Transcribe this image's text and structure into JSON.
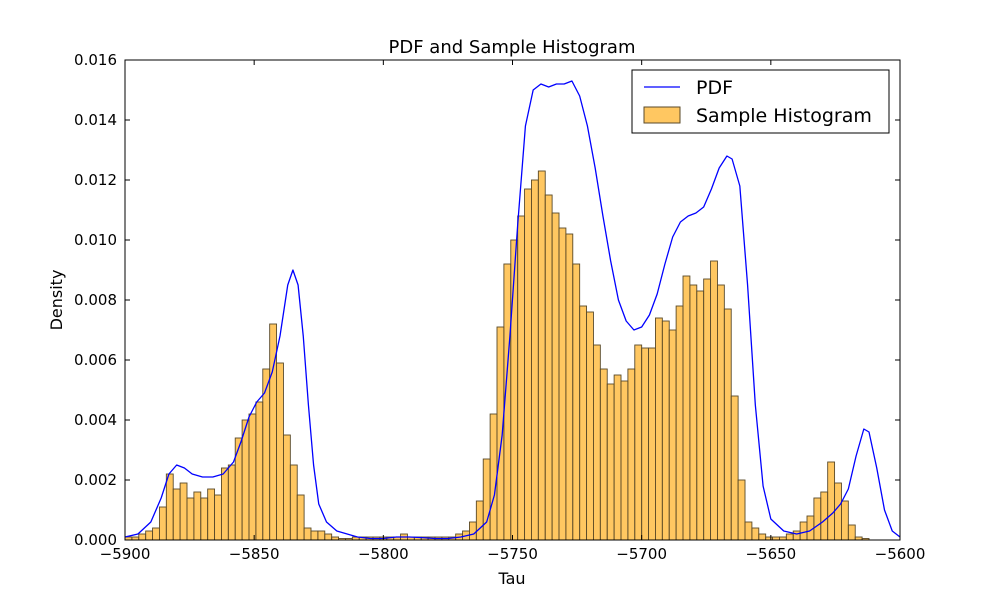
{
  "chart_data": {
    "type": "bar",
    "title": "PDF and Sample Histogram",
    "xlabel": "Tau",
    "ylabel": "Density",
    "xlim": [
      -5900,
      -5600
    ],
    "ylim": [
      0,
      0.016
    ],
    "xticks": [
      -5900,
      -5850,
      -5800,
      -5750,
      -5700,
      -5650,
      -5600
    ],
    "xtick_labels": [
      "−5900",
      "−5850",
      "−5800",
      "−5750",
      "−5700",
      "−5650",
      "−5600"
    ],
    "yticks": [
      0,
      0.002,
      0.004,
      0.006,
      0.008,
      0.01,
      0.012,
      0.014,
      0.016
    ],
    "ytick_labels": [
      "0.000",
      "0.002",
      "0.004",
      "0.006",
      "0.008",
      "0.010",
      "0.012",
      "0.014",
      "0.016"
    ],
    "grid": false,
    "legend": {
      "position": "top-right"
    },
    "colors": {
      "pdf": "#0000ff",
      "histogram": "#ffa500",
      "bar_edge": "#5a4a2a"
    },
    "series": [
      {
        "name": "PDF",
        "type": "line",
        "x": [
          -5900,
          -5895,
          -5890,
          -5886,
          -5883,
          -5880,
          -5877,
          -5874,
          -5870,
          -5866,
          -5862,
          -5858,
          -5855,
          -5852,
          -5849,
          -5846,
          -5843,
          -5840,
          -5837,
          -5835,
          -5833,
          -5831,
          -5829,
          -5827,
          -5825,
          -5822,
          -5818,
          -5814,
          -5810,
          -5805,
          -5800,
          -5795,
          -5790,
          -5785,
          -5780,
          -5775,
          -5770,
          -5765,
          -5760,
          -5757,
          -5754,
          -5751,
          -5748,
          -5745,
          -5742,
          -5739,
          -5736,
          -5733,
          -5730,
          -5727,
          -5724,
          -5721,
          -5718,
          -5715,
          -5712,
          -5709,
          -5706,
          -5703,
          -5700,
          -5697,
          -5694,
          -5691,
          -5688,
          -5685,
          -5682,
          -5679,
          -5676,
          -5673,
          -5670,
          -5667,
          -5665,
          -5662,
          -5659,
          -5656,
          -5653,
          -5650,
          -5645,
          -5640,
          -5635,
          -5630,
          -5626,
          -5623,
          -5620,
          -5617,
          -5614,
          -5612,
          -5609,
          -5606,
          -5603,
          -5600
        ],
        "y": [
          0.0001,
          0.0002,
          0.0006,
          0.0014,
          0.0022,
          0.0025,
          0.0024,
          0.0022,
          0.0021,
          0.0021,
          0.0022,
          0.0026,
          0.0033,
          0.0041,
          0.0046,
          0.0049,
          0.0056,
          0.0068,
          0.0085,
          0.009,
          0.0085,
          0.0068,
          0.0045,
          0.0025,
          0.0012,
          0.0006,
          0.0003,
          0.0002,
          0.0001,
          5e-05,
          5e-05,
          0.0001,
          0.0001,
          8e-05,
          5e-05,
          5e-05,
          0.0001,
          0.0002,
          0.0006,
          0.0015,
          0.0035,
          0.0068,
          0.0105,
          0.0138,
          0.015,
          0.0152,
          0.0151,
          0.0152,
          0.0152,
          0.0153,
          0.0148,
          0.0138,
          0.0124,
          0.0108,
          0.0093,
          0.008,
          0.0073,
          0.007,
          0.0071,
          0.0075,
          0.0082,
          0.0092,
          0.0101,
          0.0106,
          0.0108,
          0.0109,
          0.0111,
          0.0117,
          0.0124,
          0.0128,
          0.0127,
          0.0118,
          0.0085,
          0.0045,
          0.0018,
          0.0007,
          0.0003,
          0.0002,
          0.0003,
          0.0006,
          0.0009,
          0.0012,
          0.0017,
          0.0028,
          0.0037,
          0.0036,
          0.0024,
          0.001,
          0.0003,
          0.0001
        ]
      },
      {
        "name": "Sample Histogram",
        "type": "bar",
        "bin_start": -5900,
        "bin_width": 2.6667,
        "values": [
          0.0001,
          0.0001,
          0.0002,
          0.0003,
          0.0004,
          0.0011,
          0.0022,
          0.0017,
          0.0019,
          0.0014,
          0.0016,
          0.0014,
          0.0017,
          0.0015,
          0.0024,
          0.0025,
          0.0034,
          0.004,
          0.0042,
          0.0046,
          0.0057,
          0.0072,
          0.0059,
          0.0035,
          0.0025,
          0.0015,
          0.0004,
          0.0003,
          0.0003,
          0.0002,
          0.0001,
          5e-05,
          5e-05,
          0.0001,
          0.0001,
          0.0001,
          0.0001,
          0.0001,
          0.0001,
          0.0001,
          0.0002,
          0.0001,
          0.0001,
          0.0001,
          0.0001,
          0.0001,
          0.0001,
          0.0001,
          0.0002,
          0.0003,
          0.0006,
          0.0013,
          0.0027,
          0.0042,
          0.0071,
          0.0092,
          0.01,
          0.0108,
          0.0117,
          0.012,
          0.0123,
          0.0115,
          0.0109,
          0.0104,
          0.0102,
          0.0092,
          0.0078,
          0.0076,
          0.0065,
          0.0057,
          0.0052,
          0.0055,
          0.0053,
          0.0057,
          0.0065,
          0.0064,
          0.0064,
          0.0074,
          0.0073,
          0.007,
          0.0078,
          0.0088,
          0.0085,
          0.0083,
          0.0087,
          0.0093,
          0.0085,
          0.0077,
          0.0048,
          0.002,
          0.0006,
          0.0004,
          0.0002,
          0.0001,
          0.0001,
          0.0001,
          0.0002,
          0.0003,
          0.0006,
          0.0008,
          0.0014,
          0.0016,
          0.0026,
          0.0019,
          0.0013,
          0.0005,
          0.0001,
          5e-05
        ]
      }
    ]
  }
}
